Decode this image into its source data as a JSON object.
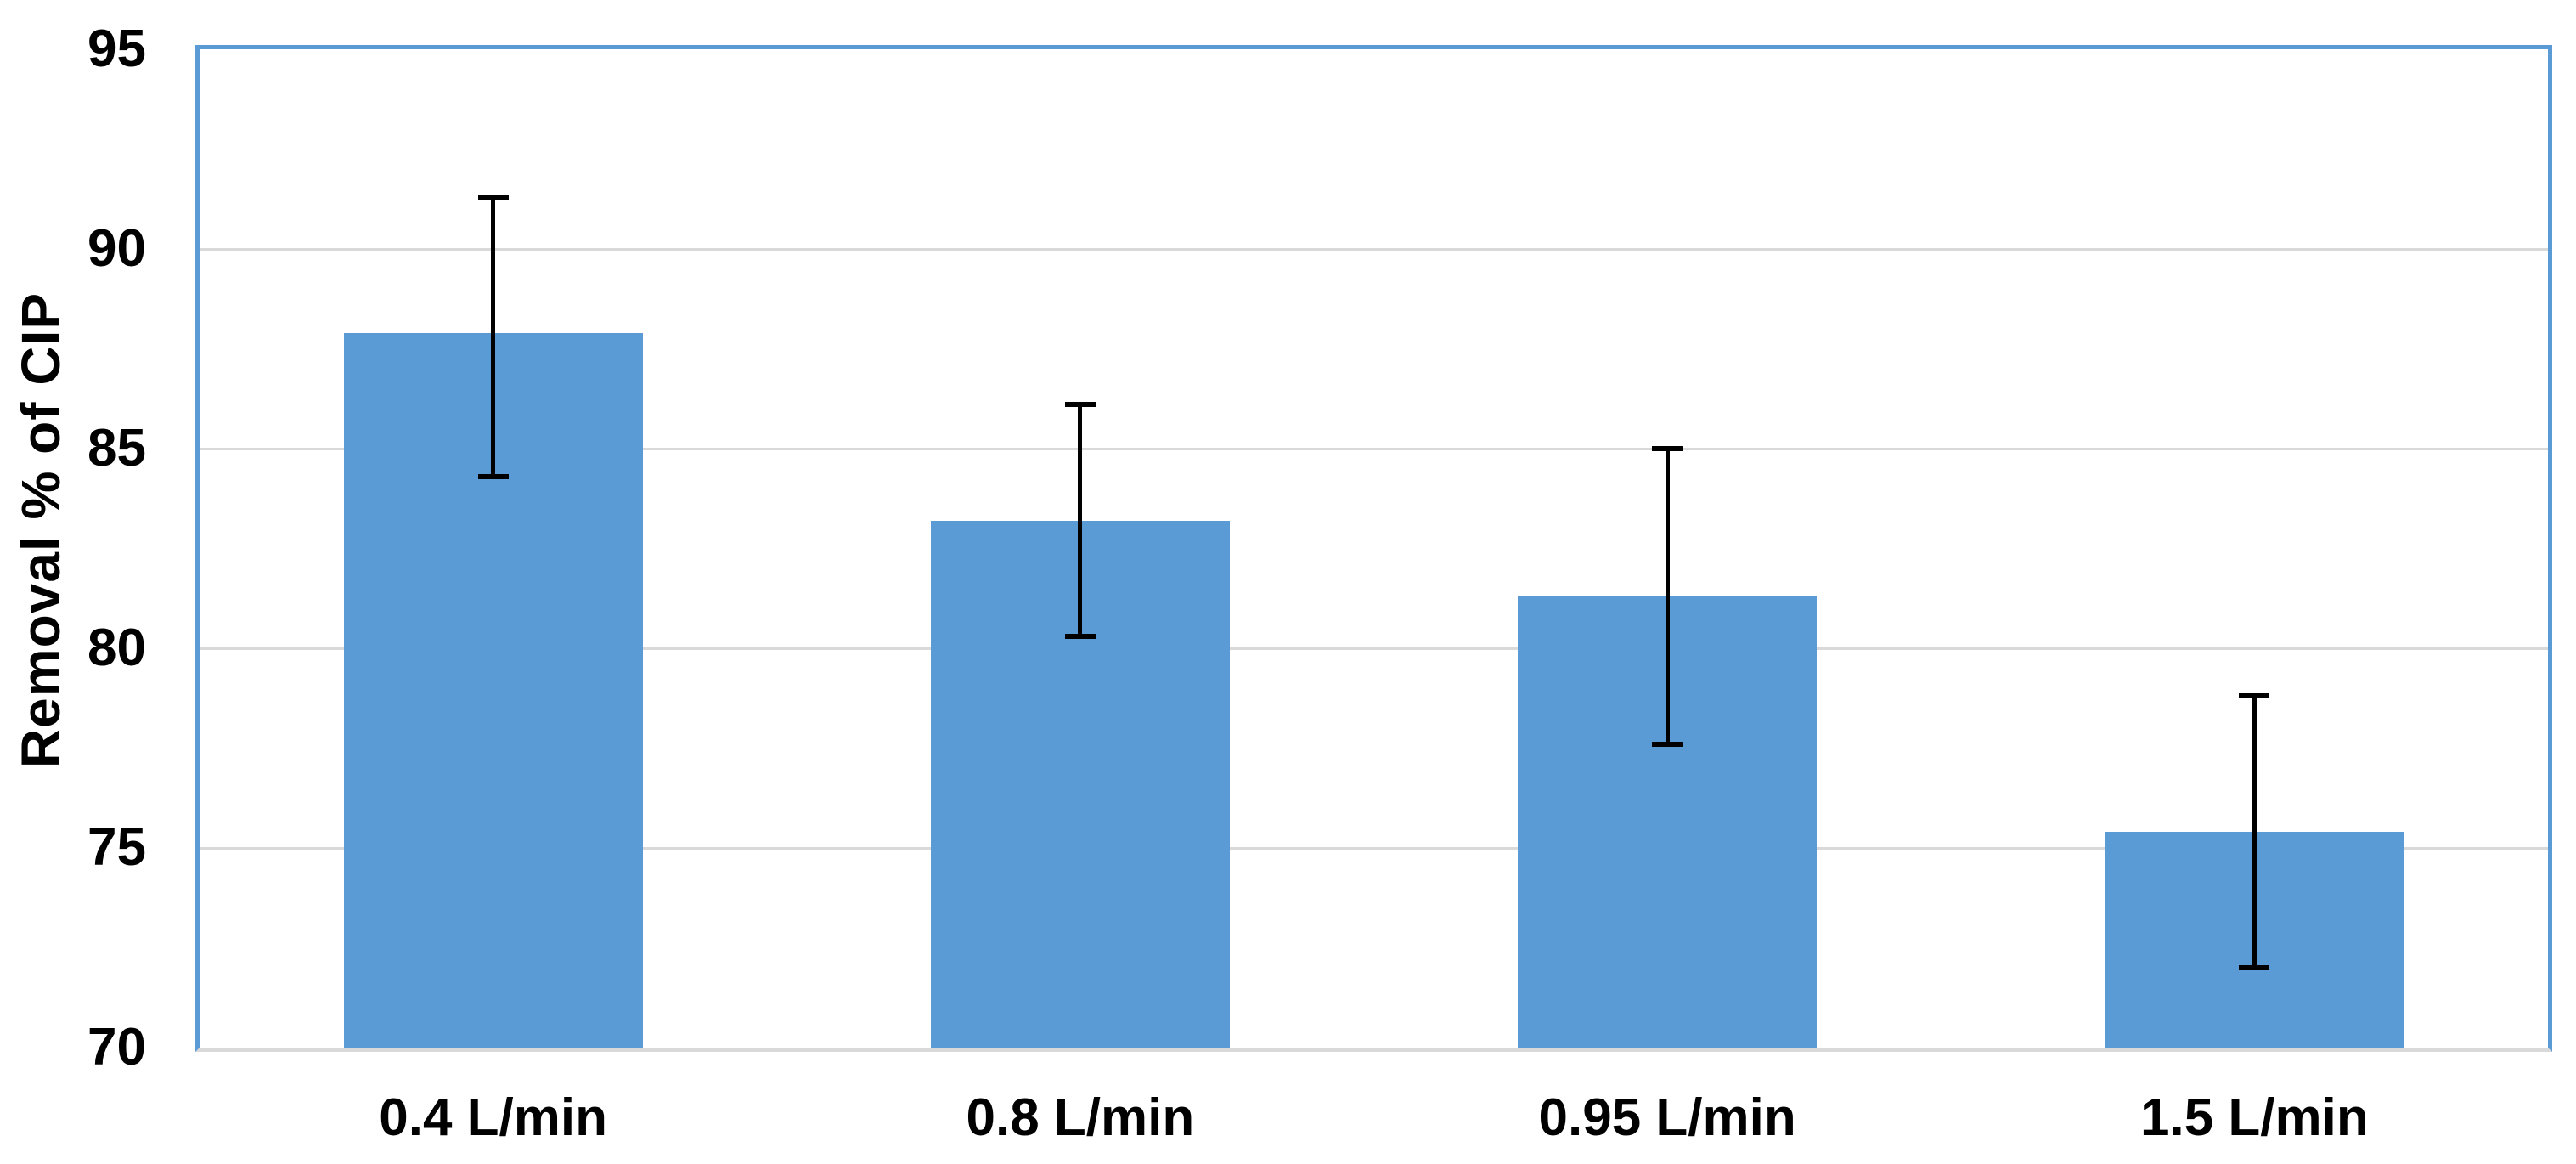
{
  "chart_data": {
    "type": "bar",
    "title": "",
    "xlabel": "",
    "ylabel": "Removal % of CIP",
    "categories": [
      "0.4 L/min",
      "0.8 L/min",
      "0.95 L/min",
      "1.5 L/min"
    ],
    "series": [
      {
        "name": "Removal % of CIP",
        "values": [
          87.9,
          83.2,
          81.3,
          75.4
        ],
        "error_upper": [
          91.3,
          86.1,
          85.0,
          78.8
        ],
        "error_lower": [
          84.3,
          80.3,
          77.6,
          72.0
        ]
      }
    ],
    "ylim": [
      70,
      95
    ],
    "yticks": [
      70,
      75,
      80,
      85,
      90,
      95
    ],
    "grid": true,
    "legend_position": "none",
    "colors": {
      "bar_fill": "#5B9BD5",
      "plot_border": "#5B9BD5",
      "gridline": "#D9D9D9",
      "bottom_axis": "#D9D9D9",
      "error_bar": "#000000",
      "text": "#000000",
      "background": "#FFFFFF"
    }
  }
}
